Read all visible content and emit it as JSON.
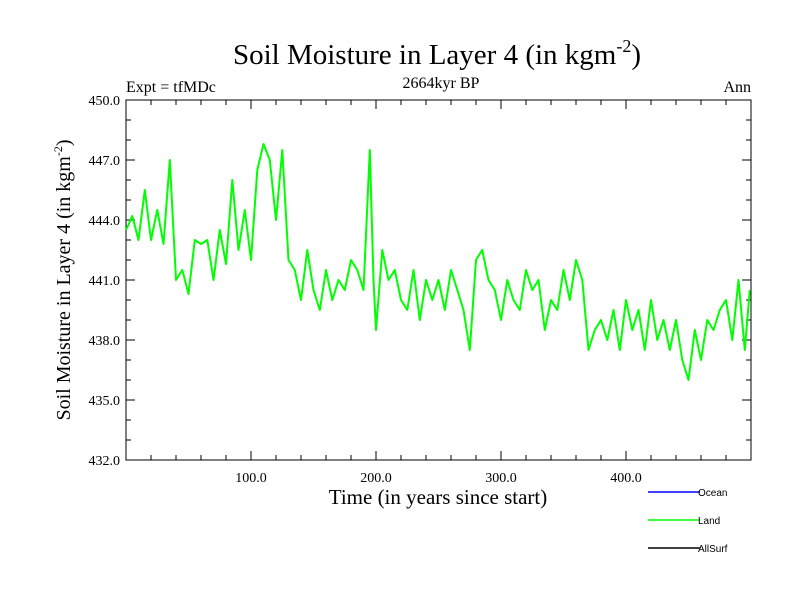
{
  "chart_data": {
    "type": "line",
    "title_main": "Soil Moisture in Layer 4 (in kgm",
    "title_sup": "-2",
    "title_close": ")",
    "subtitle_left": "Expt = tfMDc",
    "subtitle_center": "2664kyr BP",
    "subtitle_right": "Ann",
    "xlabel": "Time (in years since start)",
    "ylabel_main": "Soil Moisture in Layer 4 (in kgm",
    "ylabel_sup": "-2",
    "ylabel_close": ")",
    "xlim": [
      0,
      500
    ],
    "ylim": [
      432.0,
      450.0
    ],
    "xticks": [
      100,
      200,
      300,
      400
    ],
    "xtick_labels": [
      "100.0",
      "200.0",
      "300.0",
      "400.0"
    ],
    "yticks": [
      432,
      435,
      438,
      441,
      444,
      447,
      450
    ],
    "ytick_labels": [
      "432.0",
      "435.0",
      "438.0",
      "441.0",
      "444.0",
      "447.0",
      "450.0"
    ],
    "legend": [
      {
        "name": "Ocean",
        "color": "#0000ff"
      },
      {
        "name": "Land",
        "color": "#00ff00"
      },
      {
        "name": "AllSurf",
        "color": "#000000"
      }
    ],
    "series": [
      {
        "name": "Land",
        "color": "#00ff00",
        "x": [
          0,
          5,
          10,
          15,
          20,
          25,
          30,
          35,
          40,
          45,
          50,
          55,
          60,
          65,
          70,
          75,
          80,
          85,
          90,
          95,
          100,
          105,
          110,
          115,
          120,
          125,
          130,
          135,
          140,
          145,
          150,
          155,
          160,
          165,
          170,
          175,
          180,
          185,
          190,
          195,
          198,
          200,
          205,
          210,
          215,
          220,
          225,
          230,
          235,
          240,
          245,
          250,
          255,
          260,
          265,
          270,
          275,
          280,
          285,
          290,
          295,
          300,
          305,
          310,
          315,
          320,
          325,
          330,
          335,
          340,
          345,
          350,
          355,
          360,
          365,
          370,
          375,
          380,
          385,
          390,
          395,
          400,
          405,
          410,
          415,
          420,
          425,
          430,
          435,
          440,
          445,
          450,
          455,
          460,
          465,
          470,
          475,
          480,
          485,
          490,
          495,
          499
        ],
        "values": [
          443.5,
          444.2,
          443.0,
          445.5,
          443.0,
          444.5,
          442.8,
          447.0,
          441.0,
          441.5,
          440.3,
          443.0,
          442.8,
          443.0,
          441.0,
          443.5,
          441.8,
          446.0,
          442.5,
          444.5,
          442.0,
          446.5,
          447.8,
          447.0,
          444.0,
          447.5,
          442.0,
          441.5,
          440.0,
          442.5,
          440.5,
          439.5,
          441.5,
          440.0,
          441.0,
          440.5,
          442.0,
          441.5,
          440.5,
          447.5,
          441.0,
          438.5,
          442.5,
          441.0,
          441.5,
          440.0,
          439.5,
          441.5,
          439.0,
          441.0,
          440.0,
          441.0,
          439.5,
          441.5,
          440.5,
          439.5,
          437.5,
          442.0,
          442.5,
          441.0,
          440.5,
          439.0,
          441.0,
          440.0,
          439.5,
          441.5,
          440.5,
          441.0,
          438.5,
          440.0,
          439.5,
          441.5,
          440.0,
          442.0,
          441.0,
          437.5,
          438.5,
          439.0,
          438.0,
          439.5,
          437.5,
          440.0,
          438.5,
          439.5,
          437.5,
          440.0,
          438.0,
          439.0,
          437.5,
          439.0,
          437.0,
          436.0,
          438.5,
          437.0,
          439.0,
          438.5,
          439.5,
          440.0,
          438.0,
          441.0,
          437.5,
          440.5
        ]
      }
    ]
  }
}
